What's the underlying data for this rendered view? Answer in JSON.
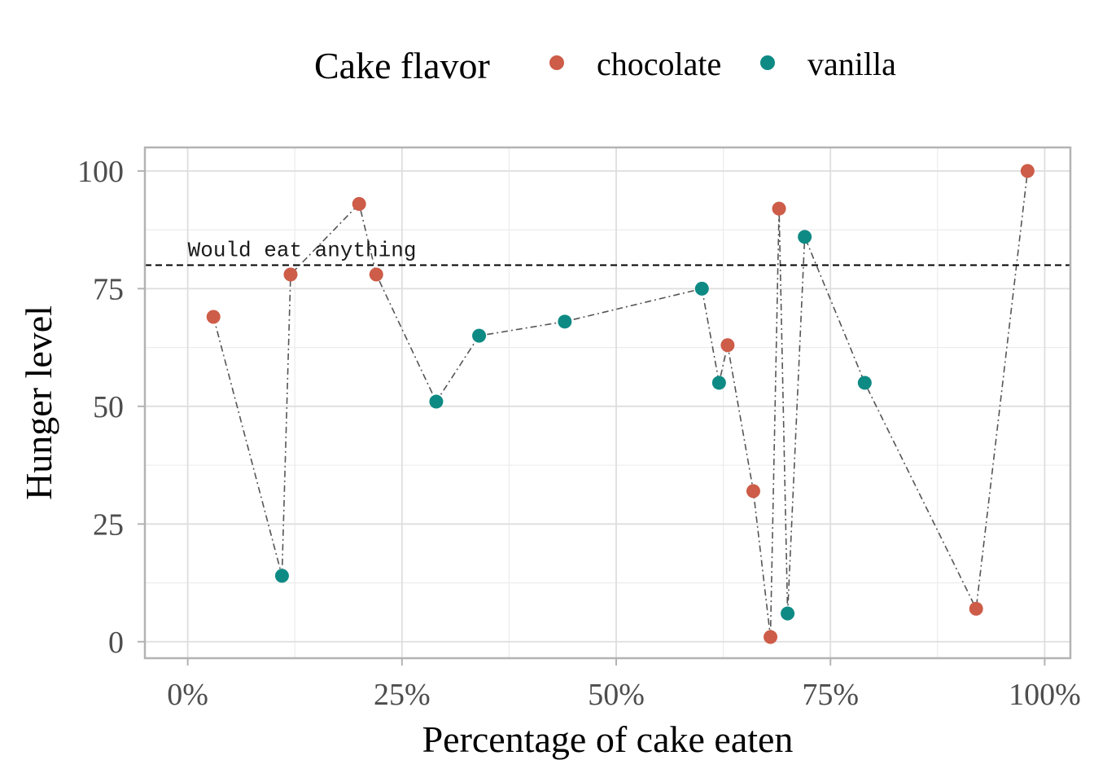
{
  "chart_data": {
    "type": "scatter",
    "title": "",
    "xlabel": "Percentage of cake eaten",
    "ylabel": "Hunger level",
    "xlim": [
      -0.05,
      1.03
    ],
    "ylim": [
      -3.5,
      105
    ],
    "x_ticks": [
      0,
      0.25,
      0.5,
      0.75,
      1.0
    ],
    "x_tick_labels": [
      "0%",
      "25%",
      "50%",
      "75%",
      "100%"
    ],
    "y_ticks": [
      0,
      25,
      50,
      75,
      100
    ],
    "y_tick_labels": [
      "0",
      "25",
      "50",
      "75",
      "100"
    ],
    "grid": true,
    "legend": {
      "title": "Cake flavor",
      "position": "top",
      "entries": [
        "chocolate",
        "vanilla"
      ]
    },
    "reference_line": {
      "y": 80,
      "style": "dashed",
      "label": "Would eat anything"
    },
    "connecting_line_order": "x",
    "series": [
      {
        "name": "chocolate",
        "color": "#CD5C48",
        "x": [
          0.03,
          0.12,
          0.2,
          0.22,
          0.63,
          0.66,
          0.68,
          0.69,
          0.92,
          0.98
        ],
        "y": [
          69,
          78,
          93,
          78,
          63,
          32,
          1,
          92,
          7,
          100
        ]
      },
      {
        "name": "vanilla",
        "color": "#0E8A84",
        "x": [
          0.11,
          0.29,
          0.34,
          0.44,
          0.6,
          0.62,
          0.7,
          0.72,
          0.79
        ],
        "y": [
          14,
          51,
          65,
          68,
          75,
          55,
          6,
          86,
          55
        ]
      }
    ]
  }
}
